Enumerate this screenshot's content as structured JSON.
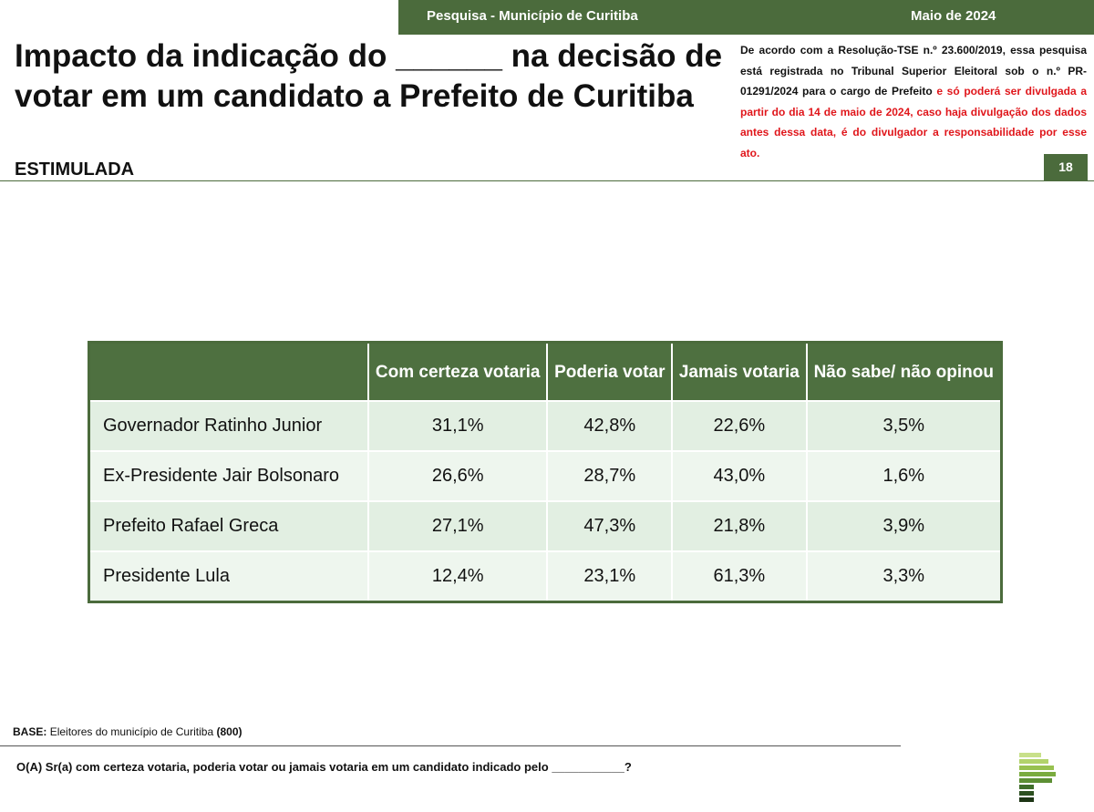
{
  "header": {
    "left": "Pesquisa - Município de Curitiba",
    "right": "Maio de 2024"
  },
  "title": "Impacto da indicação do ______ na decisão de votar em um candidato a Prefeito de Curitiba",
  "subtitle": "ESTIMULADA",
  "disclaimer": {
    "normal": "De acordo com a Resolução-TSE n.º 23.600/2019, essa pesquisa está registrada no Tribunal Superior Eleitoral sob o n.º PR-01291/2024 para o cargo de Prefeito",
    "highlight": "e só poderá ser divulgada a partir do dia 14 de maio de 2024, caso haja divulgação dos dados antes dessa data, é do divulgador a responsabilidade por esse ato."
  },
  "page_number": "18",
  "table": {
    "columns": [
      "Com certeza votaria",
      "Poderia votar",
      "Jamais votaria",
      "Não sabe/ não opinou"
    ],
    "rows": [
      [
        "Governador Ratinho Junior",
        "31,1%",
        "42,8%",
        "22,6%",
        "3,5%"
      ],
      [
        "Ex-Presidente Jair Bolsonaro",
        "26,6%",
        "28,7%",
        "43,0%",
        "1,6%"
      ],
      [
        "Prefeito Rafael Greca",
        "27,1%",
        "47,3%",
        "21,8%",
        "3,9%"
      ],
      [
        "Presidente Lula",
        "12,4%",
        "23,1%",
        "61,3%",
        "3,3%"
      ]
    ]
  },
  "base": {
    "label": "BASE:",
    "text": "Eleitores do município de Curitiba",
    "count": "(800)"
  },
  "question": "O(A) Sr(a) com certeza votaria, poderia votar ou jamais votaria em um candidato indicado pelo ___________?"
}
